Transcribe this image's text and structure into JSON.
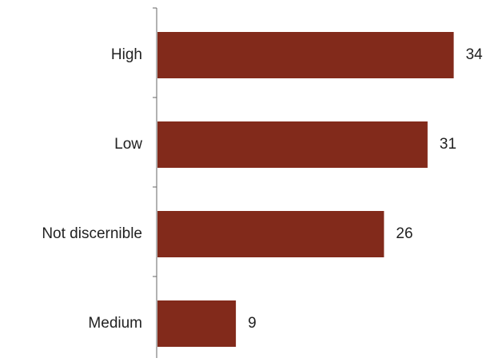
{
  "chart_data": {
    "type": "bar",
    "orientation": "horizontal",
    "categories": [
      "High",
      "Low",
      "Not discernible",
      "Medium"
    ],
    "values": [
      34,
      31,
      26,
      9
    ],
    "title": "",
    "xlabel": "",
    "ylabel": "",
    "xlim": [
      0,
      40
    ],
    "grid": false,
    "legend": "none",
    "bar_color": "#822a1b",
    "axis_color": "#666666",
    "data_labels": [
      "34",
      "31",
      "26",
      "9"
    ]
  }
}
